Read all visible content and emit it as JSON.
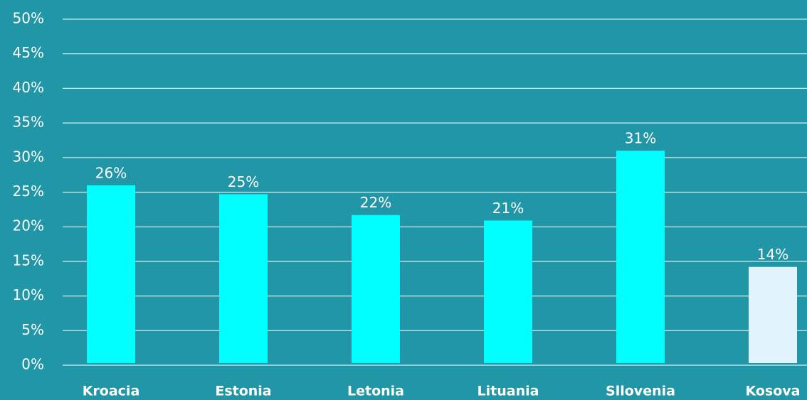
{
  "chart_data": {
    "type": "bar",
    "categories": [
      "Kroacia",
      "Estonia",
      "Letonia",
      "Lituania",
      "Sllovenia",
      "Kosova"
    ],
    "values": [
      26,
      24.7,
      21.7,
      20.9,
      31,
      14.2
    ],
    "value_labels": [
      "26%",
      "25%",
      "22%",
      "21%",
      "31%",
      "14%"
    ],
    "colors": [
      "#00ffff",
      "#00ffff",
      "#00ffff",
      "#00ffff",
      "#00ffff",
      "#e1f3fb"
    ],
    "ylim": [
      0,
      50
    ],
    "yticks": [
      {
        "value": 0,
        "label": "0%"
      },
      {
        "value": 5,
        "label": "5%"
      },
      {
        "value": 10,
        "label": "10%"
      },
      {
        "value": 15,
        "label": "15%"
      },
      {
        "value": 20,
        "label": "20%"
      },
      {
        "value": 25,
        "label": "25%"
      },
      {
        "value": 30,
        "label": "30%"
      },
      {
        "value": 35,
        "label": "35%"
      },
      {
        "value": 40,
        "label": "40%"
      },
      {
        "value": 45,
        "label": "45%"
      },
      {
        "value": 50,
        "label": "50%"
      }
    ],
    "grid": true
  }
}
